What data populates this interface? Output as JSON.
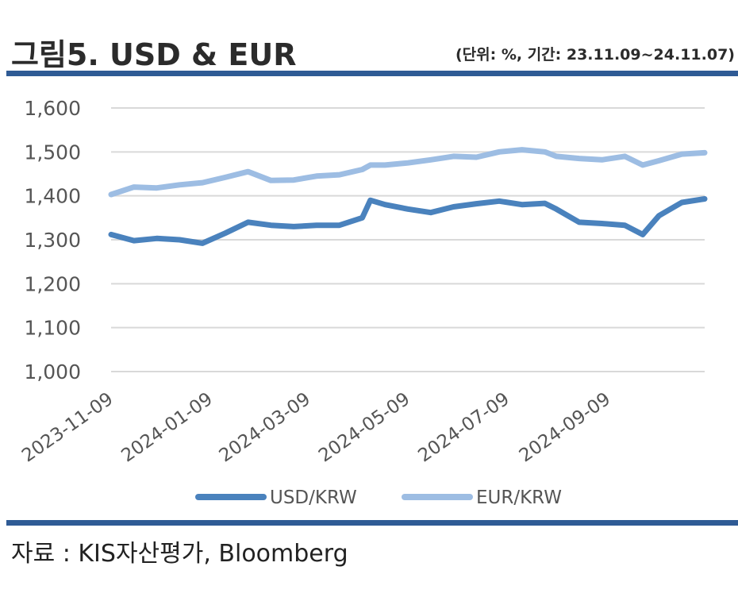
{
  "header": {
    "title": "그림5. USD & EUR",
    "meta": "(단위: %, 기간: 23.11.09~24.11.07)"
  },
  "footer": {
    "source": "자료 : KIS자산평가, Bloomberg"
  },
  "colors": {
    "usd": "#4a82bd",
    "eur": "#9dbde3",
    "grid": "#d9d9d9",
    "rule": "#2f5b95"
  },
  "chart_data": {
    "type": "line",
    "title": "",
    "xlabel": "",
    "ylabel": "",
    "ylim": [
      1000,
      1600
    ],
    "yticks": [
      1000,
      1100,
      1200,
      1300,
      1400,
      1500,
      1600
    ],
    "ytick_labels": [
      "1,000",
      "1,100",
      "1,200",
      "1,300",
      "1,400",
      "1,500",
      "1,600"
    ],
    "xlim": [
      "2023-11-09",
      "2024-11-07"
    ],
    "xtick_labels": [
      "2023-11-09",
      "2024-01-09",
      "2024-03-09",
      "2024-05-09",
      "2024-07-09",
      "2024-09-09"
    ],
    "grid": true,
    "legend": "bottom",
    "x": [
      "2023-11-09",
      "2023-11-23",
      "2023-12-07",
      "2023-12-21",
      "2024-01-04",
      "2024-01-18",
      "2024-02-01",
      "2024-02-15",
      "2024-02-29",
      "2024-03-14",
      "2024-03-28",
      "2024-04-11",
      "2024-04-16",
      "2024-04-25",
      "2024-05-09",
      "2024-05-23",
      "2024-06-06",
      "2024-06-20",
      "2024-07-04",
      "2024-07-18",
      "2024-08-01",
      "2024-08-08",
      "2024-08-22",
      "2024-09-05",
      "2024-09-19",
      "2024-09-30",
      "2024-10-10",
      "2024-10-24",
      "2024-11-07"
    ],
    "series": [
      {
        "name": "USD/KRW",
        "values": [
          1312,
          1298,
          1303,
          1300,
          1292,
          1315,
          1340,
          1333,
          1330,
          1333,
          1333,
          1350,
          1390,
          1380,
          1370,
          1362,
          1375,
          1382,
          1388,
          1380,
          1383,
          1370,
          1340,
          1337,
          1333,
          1312,
          1355,
          1385,
          1393
        ]
      },
      {
        "name": "EUR/KRW",
        "values": [
          1403,
          1420,
          1418,
          1425,
          1430,
          1442,
          1455,
          1435,
          1436,
          1445,
          1448,
          1460,
          1470,
          1470,
          1475,
          1482,
          1490,
          1488,
          1500,
          1505,
          1500,
          1490,
          1485,
          1482,
          1490,
          1470,
          1480,
          1495,
          1498
        ]
      }
    ]
  }
}
